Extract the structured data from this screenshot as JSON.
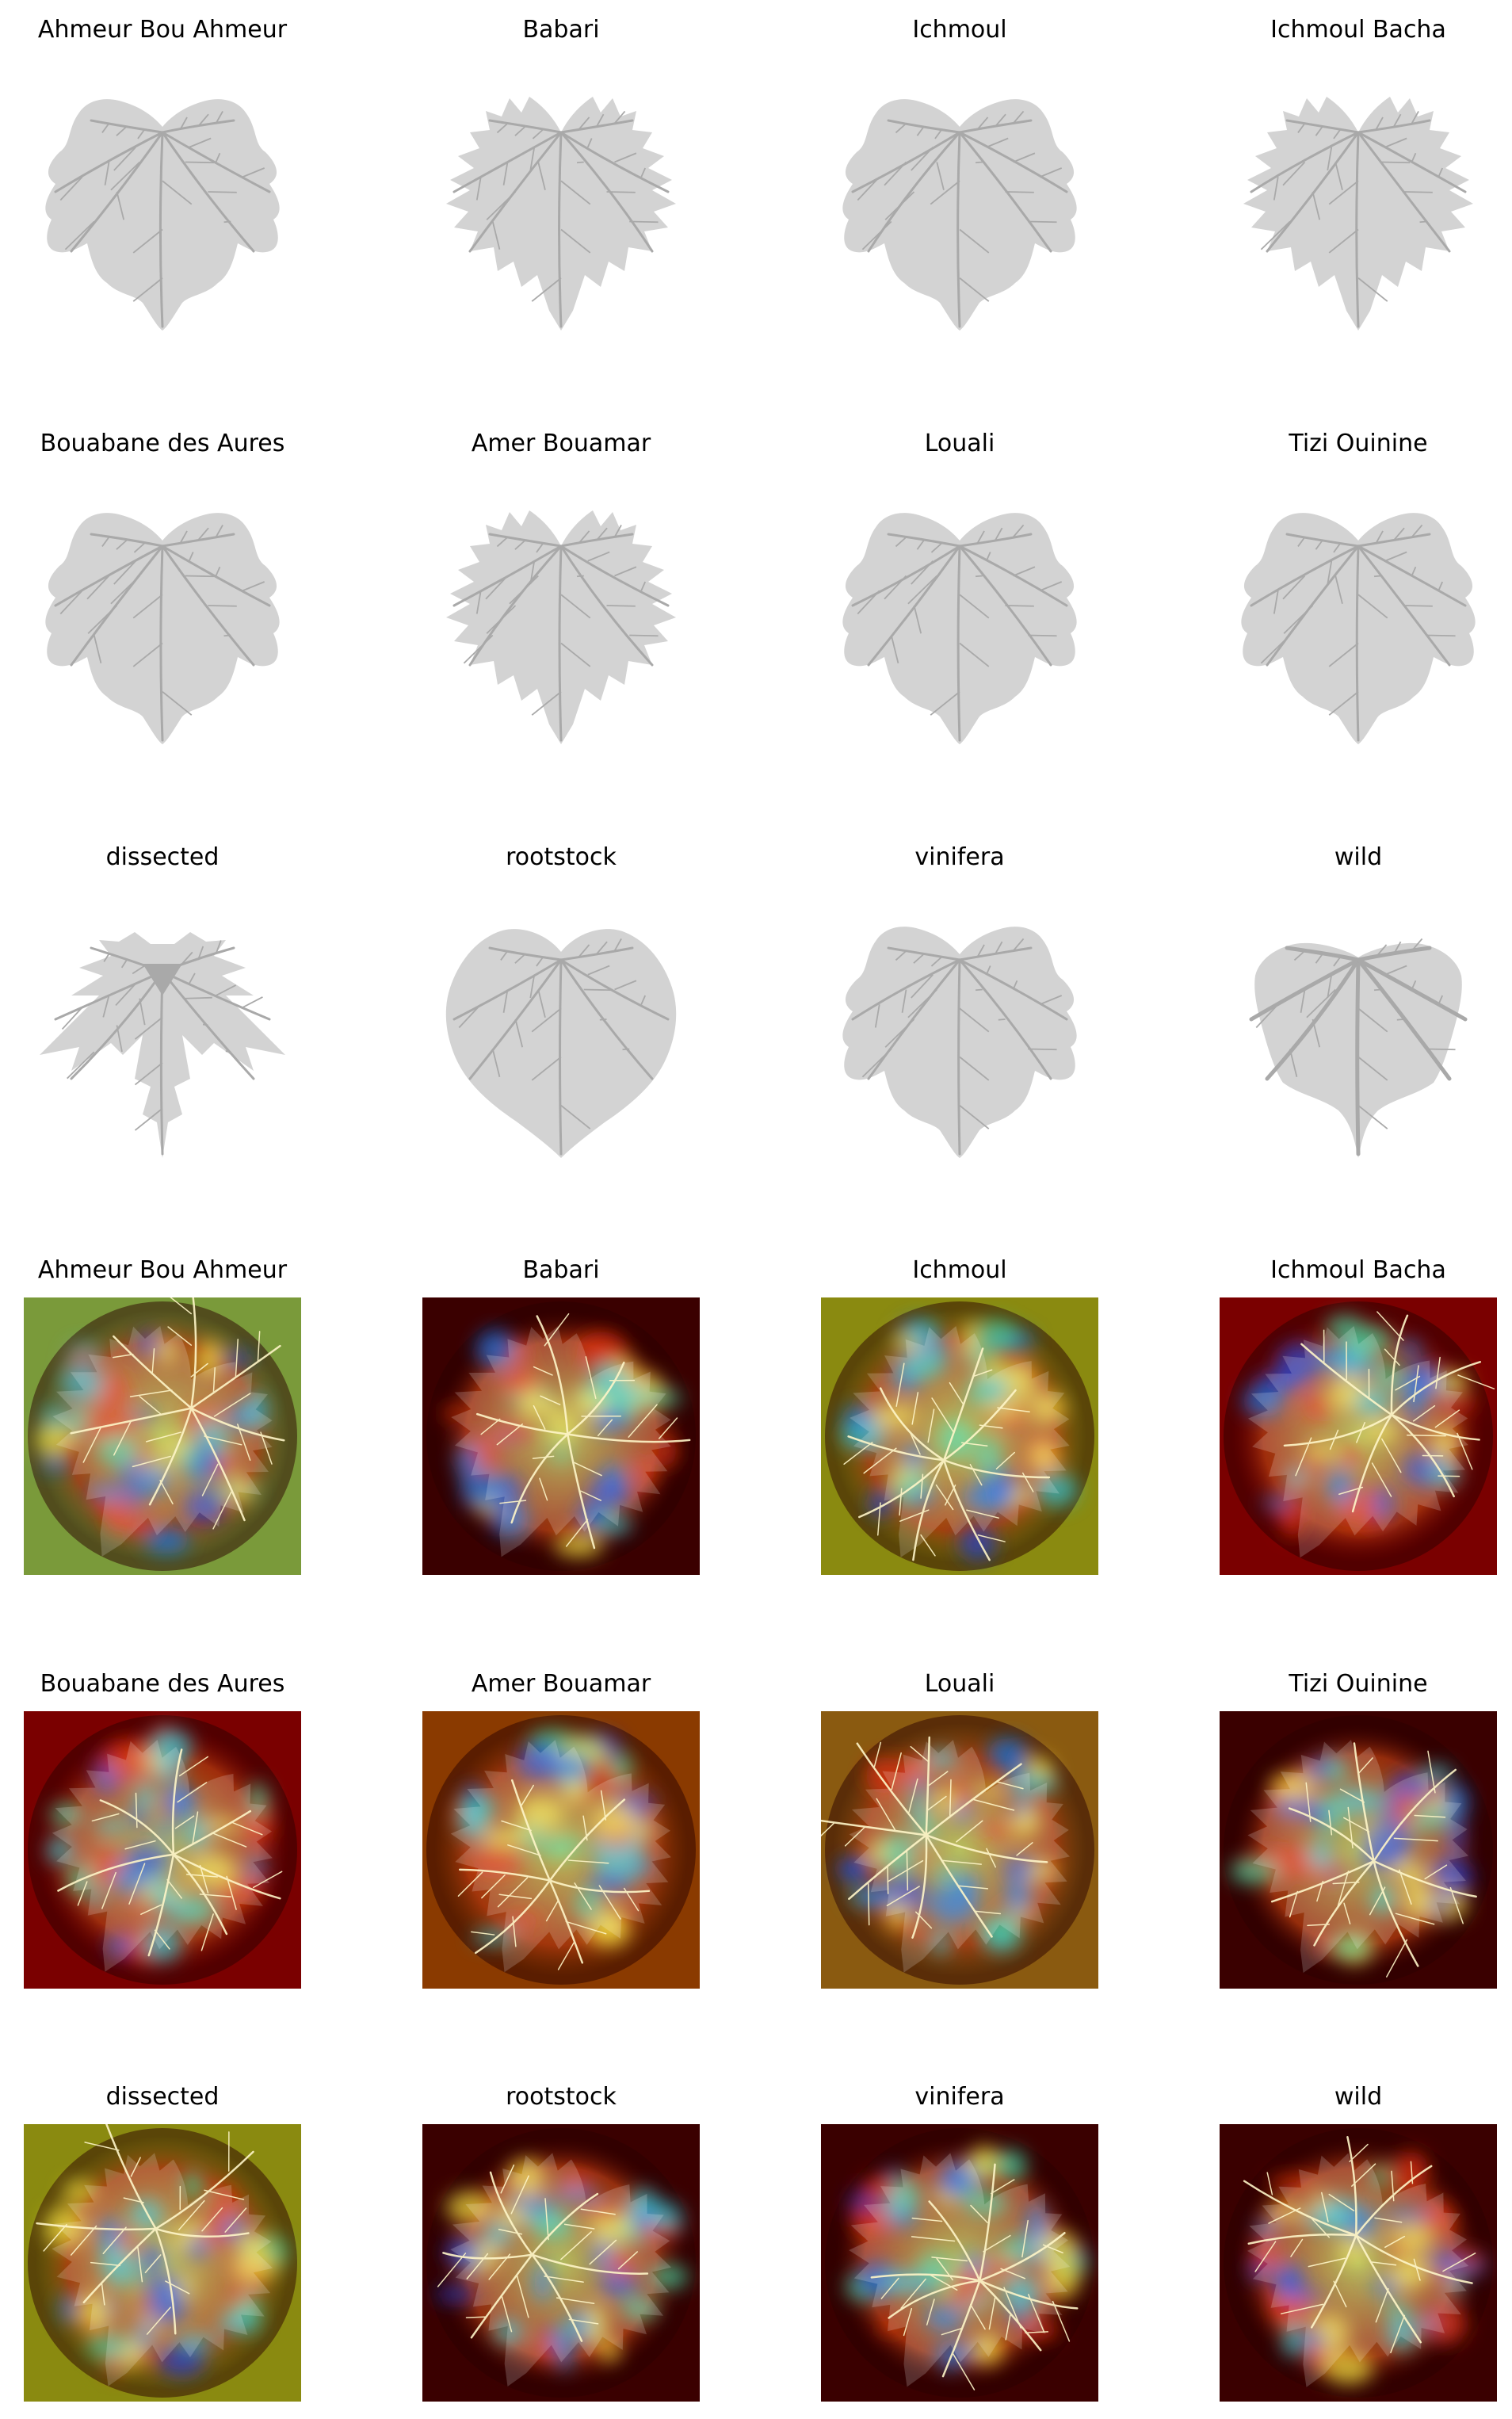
{
  "figure": {
    "leaf_shape_panels": [
      {
        "title": "Ahmeur Bou Ahmeur",
        "variant": "wide"
      },
      {
        "title": "Babari",
        "variant": "spiky"
      },
      {
        "title": "Ichmoul",
        "variant": "wide"
      },
      {
        "title": "Ichmoul Bacha",
        "variant": "spiky"
      },
      {
        "title": "Bouabane des Aures",
        "variant": "wide"
      },
      {
        "title": "Amer Bouamar",
        "variant": "spiky"
      },
      {
        "title": "Louali",
        "variant": "wide"
      },
      {
        "title": "Tizi Ouinine",
        "variant": "wide"
      },
      {
        "title": "dissected",
        "variant": "dissected"
      },
      {
        "title": "rootstock",
        "variant": "round"
      },
      {
        "title": "vinifera",
        "variant": "wide"
      },
      {
        "title": "wild",
        "variant": "wild"
      }
    ],
    "saliency_panels": [
      {
        "title": "Ahmeur Bou Ahmeur",
        "background": "#7a9a3a"
      },
      {
        "title": "Babari",
        "background": "#3a0000"
      },
      {
        "title": "Ichmoul",
        "background": "#8a8a10"
      },
      {
        "title": "Ichmoul Bacha",
        "background": "#7a0000"
      },
      {
        "title": "Bouabane des Aures",
        "background": "#7a0000"
      },
      {
        "title": "Amer Bouamar",
        "background": "#8a3a00"
      },
      {
        "title": "Louali",
        "background": "#8a5a10"
      },
      {
        "title": "Tizi Ouinine",
        "background": "#3a0000"
      },
      {
        "title": "dissected",
        "background": "#8a8a10"
      },
      {
        "title": "rootstock",
        "background": "#3a0000"
      },
      {
        "title": "vinifera",
        "background": "#3a0000"
      },
      {
        "title": "wild",
        "background": "#3a0000"
      }
    ],
    "colors": {
      "leaf_fill": "#d3d3d3",
      "leaf_vein": "#a9a9a9",
      "heat_low": "#1c3fd0",
      "heat_mid": "#3fd0a0",
      "heat_high": "#e03010",
      "vein_highlight": "#fff6c8"
    }
  }
}
